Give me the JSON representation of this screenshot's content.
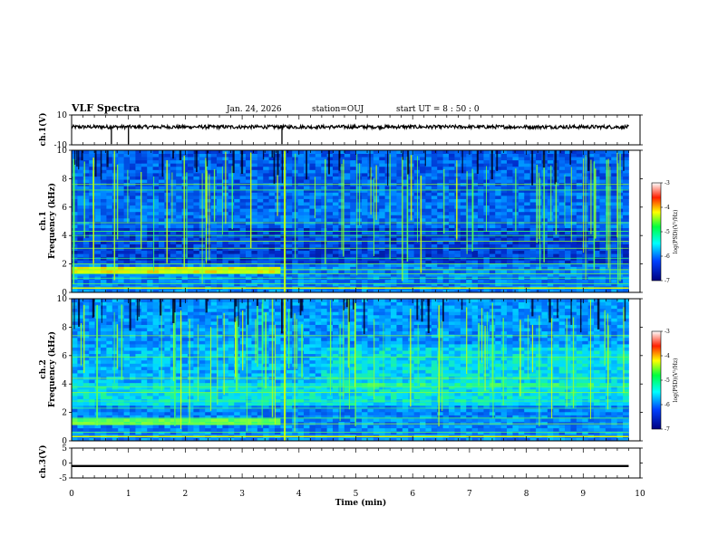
{
  "header": {
    "title": "VLF Spectra",
    "date": "Jan. 24, 2026",
    "station": "station=OUJ",
    "start": "start  UT =  8 : 50 : 0"
  },
  "chart_data": [
    {
      "type": "line",
      "panel": "ch1-waveform",
      "ylabel": "ch.1(V)",
      "ylim": [
        -10,
        10
      ],
      "yticks": [
        "10",
        "-10"
      ],
      "x": [
        0,
        10
      ],
      "xlim": [
        0,
        10
      ],
      "baseline_value": 0,
      "spikes_at_min": [
        0.7,
        1.0,
        3.7
      ],
      "color": "#000000"
    },
    {
      "type": "heatmap",
      "panel": "ch1-spectrogram",
      "ylabel": "ch.1 Frequency (kHz)",
      "ylim": [
        0,
        10
      ],
      "yticks": [
        "0",
        "2",
        "4",
        "6",
        "8",
        "10"
      ],
      "xlim": [
        0,
        10
      ],
      "data_end_min": 9.8,
      "bright_lines_khz": [
        0.3,
        0.6,
        1.0,
        1.3,
        1.6,
        2.0,
        2.4,
        3.1,
        3.6,
        4.0,
        4.3,
        4.9,
        7.2,
        7.6
      ],
      "event_min": 3.75,
      "colorbar": {
        "label": "log(PSD)(V²/Hz)",
        "ticks": [
          "-3",
          "-4",
          "-5",
          "-6",
          "-7"
        ],
        "range": [
          -7,
          -3
        ]
      }
    },
    {
      "type": "heatmap",
      "panel": "ch2-spectrogram",
      "ylabel": "ch.2 Frequency (kHz)",
      "ylim": [
        0,
        10
      ],
      "yticks": [
        "0",
        "2",
        "4",
        "6",
        "8",
        "10"
      ],
      "xlim": [
        0,
        10
      ],
      "data_end_min": 9.8,
      "bright_lines_khz": [
        0.3,
        0.6,
        1.2,
        1.6,
        2.3,
        2.8,
        3.4,
        3.8,
        4.4,
        5.9,
        7.4
      ],
      "event_min": 3.75,
      "colorbar": {
        "label": "log(PSD)(V²/Hz)",
        "ticks": [
          "-3",
          "-4",
          "-5",
          "-6",
          "-7"
        ],
        "range": [
          -7,
          -3
        ]
      }
    },
    {
      "type": "line",
      "panel": "ch3-waveform",
      "ylabel": "ch.3(V)",
      "ylim": [
        -5,
        5
      ],
      "yticks": [
        "5",
        "0",
        "-5"
      ],
      "xlim": [
        0,
        10
      ],
      "baseline_value": -1,
      "color": "#000000"
    }
  ],
  "xaxis": {
    "label": "Time  (min)",
    "ticks": [
      "0",
      "1",
      "2",
      "3",
      "4",
      "5",
      "6",
      "7",
      "8",
      "9",
      "10"
    ]
  },
  "colors": {
    "background": "#ffffff",
    "axes": "#000000",
    "spec_low": "#000040",
    "spec_mid": "#00c8ff",
    "spec_high": "#ffff00"
  }
}
